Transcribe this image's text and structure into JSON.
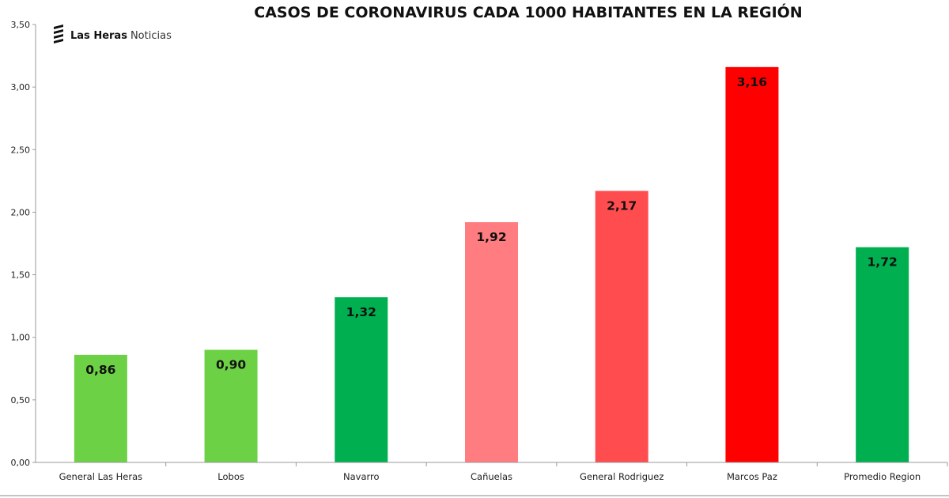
{
  "brand": {
    "name_bold": "Las Heras",
    "name_light": "Noticias"
  },
  "chart_data": {
    "type": "bar",
    "title": "CASOS DE CORONAVIRUS CADA 1000 HABITANTES EN LA REGIÓN",
    "xlabel": "",
    "ylabel": "",
    "ylim": [
      0,
      3.5
    ],
    "yticks": [
      "0,00",
      "0,50",
      "1,00",
      "1,50",
      "2,00",
      "2,50",
      "3,00",
      "3,50"
    ],
    "categories": [
      "General Las Heras",
      "Lobos",
      "Navarro",
      "Cañuelas",
      "General Rodriguez",
      "Marcos Paz",
      "Promedio Region"
    ],
    "values": [
      0.86,
      0.9,
      1.32,
      1.92,
      2.17,
      3.16,
      1.72
    ],
    "value_labels": [
      "0,86",
      "0,90",
      "1,32",
      "1,92",
      "2,17",
      "3,16",
      "1,72"
    ],
    "colors": [
      "#6dd146",
      "#6dd146",
      "#00b050",
      "#ff7c80",
      "#ff4d4f",
      "#ff0000",
      "#00b050"
    ],
    "grid": false,
    "legend": "none"
  }
}
